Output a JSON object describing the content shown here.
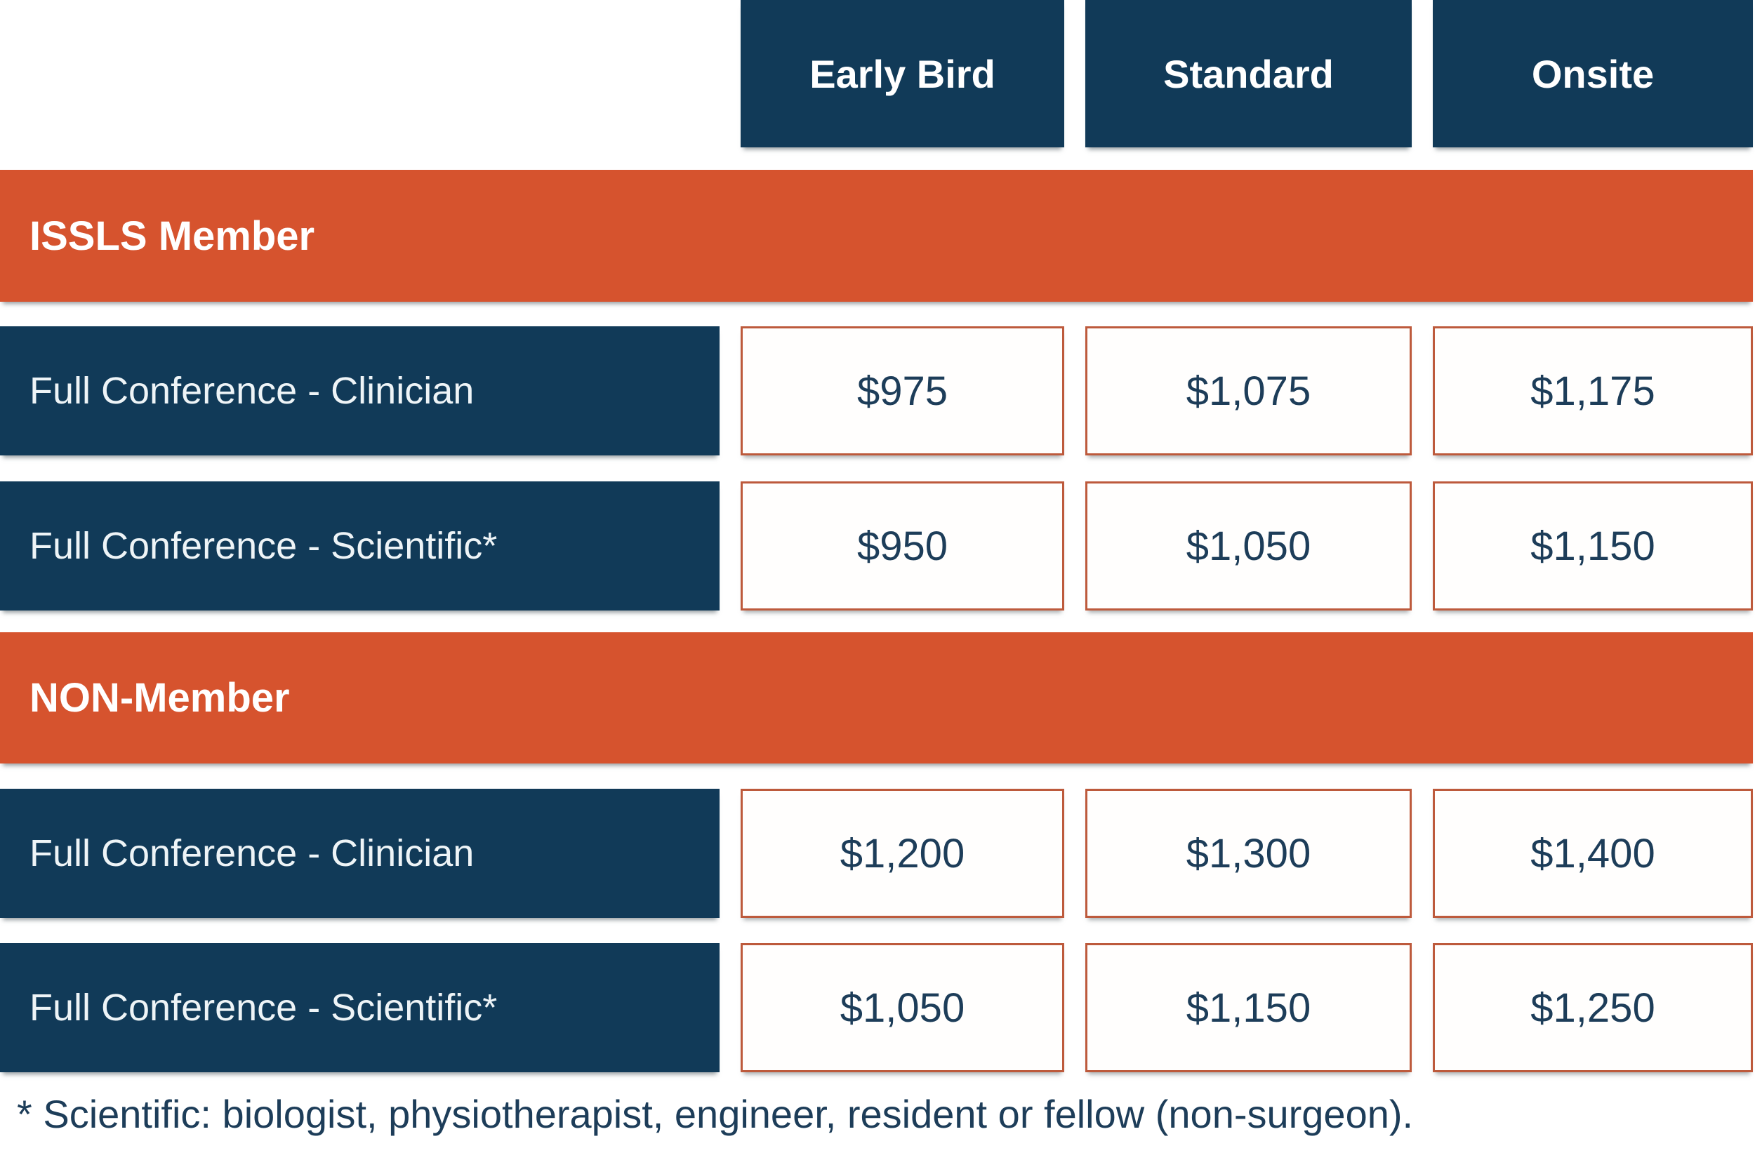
{
  "table": {
    "columns": [
      "Early Bird",
      "Standard",
      "Onsite"
    ],
    "sections": [
      {
        "title": "ISSLS Member",
        "rows": [
          {
            "label": "Full Conference - Clinician",
            "prices": [
              "$975",
              "$1,075",
              "$1,175"
            ]
          },
          {
            "label": "Full Conference - Scientific*",
            "prices": [
              "$950",
              "$1,050",
              "$1,150"
            ]
          }
        ]
      },
      {
        "title": "NON-Member",
        "rows": [
          {
            "label": "Full Conference - Clinician",
            "prices": [
              "$1,200",
              "$1,300",
              "$1,400"
            ]
          },
          {
            "label": "Full Conference - Scientific*",
            "prices": [
              "$1,050",
              "$1,150",
              "$1,250"
            ]
          }
        ]
      }
    ],
    "footnote": "* Scientific: biologist, physiotherapist, engineer, resident or fellow (non-surgeon)."
  },
  "colors": {
    "navy": "#113a58",
    "orange": "#d6532e",
    "cell_border": "#bd5a3c",
    "price_text": "#1d3d59",
    "white": "#ffffff"
  },
  "chart_data": {
    "type": "table",
    "columns": [
      "",
      "Early Bird",
      "Standard",
      "Onsite"
    ],
    "rows": [
      [
        "ISSLS Member",
        "",
        "",
        ""
      ],
      [
        "Full Conference - Clinician",
        "$975",
        "$1,075",
        "$1,175"
      ],
      [
        "Full Conference - Scientific*",
        "$950",
        "$1,050",
        "$1,150"
      ],
      [
        "NON-Member",
        "",
        "",
        ""
      ],
      [
        "Full Conference - Clinician",
        "$1,200",
        "$1,300",
        "$1,400"
      ],
      [
        "Full Conference - Scientific*",
        "$1,050",
        "$1,150",
        "$1,250"
      ]
    ],
    "footnote": "* Scientific: biologist, physiotherapist, engineer, resident or fellow (non-surgeon).",
    "layout_hints": {
      "section_bar_color": "#d6532e",
      "header_and_label_color": "#113a58",
      "price_cell_border": "#bd5a3c",
      "grid": "off"
    }
  }
}
